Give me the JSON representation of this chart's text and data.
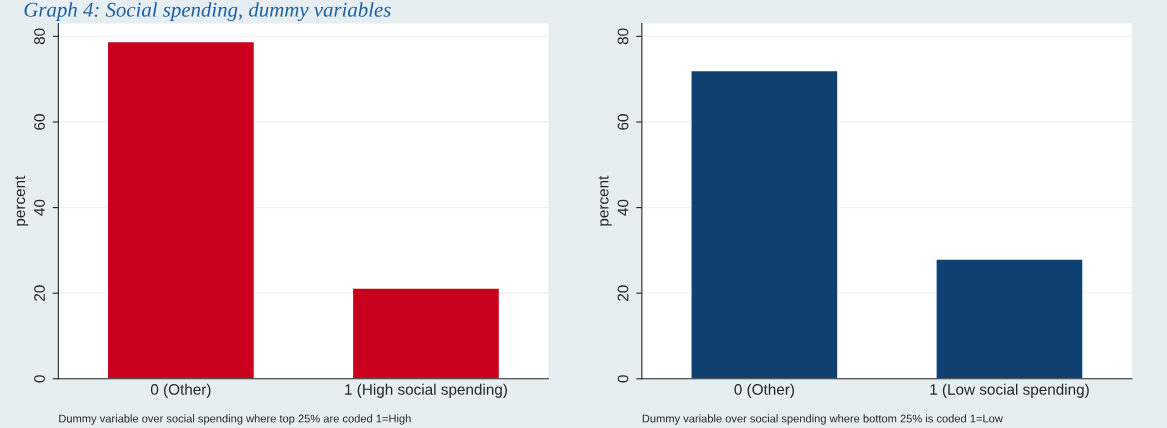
{
  "chart_data": [
    {
      "type": "bar",
      "title": "Graph 4: Social spending, dummy variables",
      "categories": [
        "0 (Other)",
        "1 (High social spending)"
      ],
      "values": [
        78.8,
        21.2
      ],
      "color": "#c8001e",
      "ylabel": "percent",
      "ylim": [
        0,
        83
      ],
      "yticks": [
        0,
        20,
        40,
        60,
        80
      ],
      "grid": "y",
      "annotations": [
        "Dummy variable over social spending where top 25% are coded 1=High"
      ]
    },
    {
      "type": "bar",
      "categories": [
        "0 (Other)",
        "1 (Low social spending)"
      ],
      "values": [
        72.0,
        28.0
      ],
      "color": "#0f4070",
      "ylabel": "percent",
      "ylim": [
        0,
        83
      ],
      "yticks": [
        0,
        20,
        40,
        60,
        80
      ],
      "grid": "y",
      "annotations": [
        "Dummy variable over social spending where bottom 25% is coded 1=Low"
      ]
    }
  ]
}
